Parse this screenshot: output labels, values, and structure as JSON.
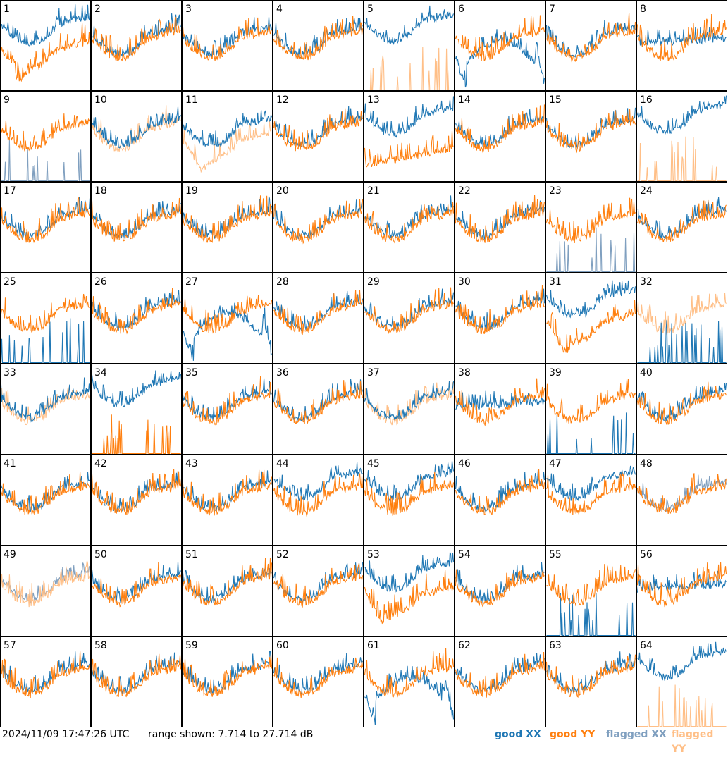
{
  "footer": {
    "timestamp": "2024/11/09 17:47:26 UTC",
    "range_text": "range shown: 7.714 to 27.714 dB"
  },
  "legend": {
    "good_xx": "good XX",
    "good_yy": "good YY",
    "flagged_xx": "flagged XX",
    "flagged_yy": "flagged YY"
  },
  "colors": {
    "good_xx": "#1f77b4",
    "good_yy": "#ff7f0e",
    "flagged_xx": "#7f9fbf",
    "flagged_yy": "#ffbf87",
    "border": "#000000",
    "label": "#000000"
  },
  "chart_data": {
    "type": "line",
    "ylim": [
      7.714,
      27.714
    ],
    "grid": false,
    "legend_placement": "bottom-right",
    "panels": [
      {
        "label": "1",
        "xx": "good",
        "yy": "good",
        "xx_shape": "xx_above",
        "yy_shape": "dip"
      },
      {
        "label": "2",
        "xx": "good",
        "yy": "good",
        "xx_shape": "track",
        "yy_shape": "std"
      },
      {
        "label": "3",
        "xx": "good",
        "yy": "good",
        "xx_shape": "track",
        "yy_shape": "std"
      },
      {
        "label": "4",
        "xx": "good",
        "yy": "good",
        "xx_shape": "track",
        "yy_shape": "std"
      },
      {
        "label": "5",
        "xx": "good",
        "yy": "flagged",
        "xx_shape": "xx_high",
        "yy_shape": "spikes"
      },
      {
        "label": "6",
        "xx": "good",
        "yy": "good",
        "xx_shape": "xx_drop",
        "yy_shape": "std"
      },
      {
        "label": "7",
        "xx": "good",
        "yy": "good",
        "xx_shape": "track",
        "yy_shape": "std"
      },
      {
        "label": "8",
        "xx": "good",
        "yy": "good",
        "xx_shape": "xx_flat",
        "yy_shape": "std"
      },
      {
        "label": "9",
        "xx": "flagged",
        "yy": "good",
        "xx_shape": "spikes",
        "yy_shape": "std"
      },
      {
        "label": "10",
        "xx": "good",
        "yy": "flagged",
        "xx_shape": "track",
        "yy_shape": "std"
      },
      {
        "label": "11",
        "xx": "good",
        "yy": "flagged",
        "xx_shape": "track",
        "yy_shape": "dip"
      },
      {
        "label": "12",
        "xx": "good",
        "yy": "good",
        "xx_shape": "track",
        "yy_shape": "std"
      },
      {
        "label": "13",
        "xx": "good",
        "yy": "good",
        "xx_shape": "xx_above",
        "yy_shape": "low"
      },
      {
        "label": "14",
        "xx": "good",
        "yy": "good",
        "xx_shape": "track",
        "yy_shape": "std"
      },
      {
        "label": "15",
        "xx": "good",
        "yy": "good",
        "xx_shape": "track",
        "yy_shape": "std"
      },
      {
        "label": "16",
        "xx": "good",
        "yy": "flagged",
        "xx_shape": "xx_high",
        "yy_shape": "spikes"
      },
      {
        "label": "17",
        "xx": "good",
        "yy": "good",
        "xx_shape": "track",
        "yy_shape": "std"
      },
      {
        "label": "18",
        "xx": "good",
        "yy": "good",
        "xx_shape": "track",
        "yy_shape": "std"
      },
      {
        "label": "19",
        "xx": "good",
        "yy": "good",
        "xx_shape": "track",
        "yy_shape": "std"
      },
      {
        "label": "20",
        "xx": "good",
        "yy": "good",
        "xx_shape": "track",
        "yy_shape": "std"
      },
      {
        "label": "21",
        "xx": "good",
        "yy": "good",
        "xx_shape": "track",
        "yy_shape": "std"
      },
      {
        "label": "22",
        "xx": "good",
        "yy": "good",
        "xx_shape": "track",
        "yy_shape": "std"
      },
      {
        "label": "23",
        "xx": "flagged",
        "yy": "good",
        "xx_shape": "spikes",
        "yy_shape": "std"
      },
      {
        "label": "24",
        "xx": "good",
        "yy": "good",
        "xx_shape": "track",
        "yy_shape": "std"
      },
      {
        "label": "25",
        "xx": "good",
        "yy": "good",
        "xx_shape": "spikes",
        "yy_shape": "std"
      },
      {
        "label": "26",
        "xx": "good",
        "yy": "good",
        "xx_shape": "track",
        "yy_shape": "std"
      },
      {
        "label": "27",
        "xx": "good",
        "yy": "good",
        "xx_shape": "xx_drop",
        "yy_shape": "std"
      },
      {
        "label": "28",
        "xx": "good",
        "yy": "good",
        "xx_shape": "track",
        "yy_shape": "std"
      },
      {
        "label": "29",
        "xx": "good",
        "yy": "good",
        "xx_shape": "track",
        "yy_shape": "std"
      },
      {
        "label": "30",
        "xx": "good",
        "yy": "good",
        "xx_shape": "track",
        "yy_shape": "std"
      },
      {
        "label": "31",
        "xx": "good",
        "yy": "good",
        "xx_shape": "xx_above",
        "yy_shape": "dip"
      },
      {
        "label": "32",
        "xx": "good",
        "yy": "flagged",
        "xx_shape": "spikes",
        "yy_shape": "std"
      },
      {
        "label": "33",
        "xx": "good",
        "yy": "flagged",
        "xx_shape": "track",
        "yy_shape": "std"
      },
      {
        "label": "34",
        "xx": "good",
        "yy": "good",
        "xx_shape": "xx_high",
        "yy_shape": "spikes"
      },
      {
        "label": "35",
        "xx": "good",
        "yy": "good",
        "xx_shape": "track",
        "yy_shape": "std"
      },
      {
        "label": "36",
        "xx": "good",
        "yy": "good",
        "xx_shape": "track",
        "yy_shape": "std"
      },
      {
        "label": "37",
        "xx": "good",
        "yy": "flagged",
        "xx_shape": "track",
        "yy_shape": "std"
      },
      {
        "label": "38",
        "xx": "good",
        "yy": "good",
        "xx_shape": "xx_flat",
        "yy_shape": "std"
      },
      {
        "label": "39",
        "xx": "good",
        "yy": "good",
        "xx_shape": "spikes",
        "yy_shape": "std"
      },
      {
        "label": "40",
        "xx": "good",
        "yy": "good",
        "xx_shape": "track",
        "yy_shape": "std"
      },
      {
        "label": "41",
        "xx": "good",
        "yy": "good",
        "xx_shape": "track",
        "yy_shape": "std"
      },
      {
        "label": "42",
        "xx": "good",
        "yy": "good",
        "xx_shape": "track",
        "yy_shape": "std"
      },
      {
        "label": "43",
        "xx": "good",
        "yy": "good",
        "xx_shape": "track",
        "yy_shape": "std"
      },
      {
        "label": "44",
        "xx": "good",
        "yy": "good",
        "xx_shape": "xx_above",
        "yy_shape": "std"
      },
      {
        "label": "45",
        "xx": "good",
        "yy": "good",
        "xx_shape": "xx_above",
        "yy_shape": "std"
      },
      {
        "label": "46",
        "xx": "good",
        "yy": "good",
        "xx_shape": "track",
        "yy_shape": "std"
      },
      {
        "label": "47",
        "xx": "good",
        "yy": "good",
        "xx_shape": "xx_above",
        "yy_shape": "std"
      },
      {
        "label": "48",
        "xx": "flagged",
        "yy": "good",
        "xx_shape": "track",
        "yy_shape": "std"
      },
      {
        "label": "49",
        "xx": "flagged",
        "yy": "flagged",
        "xx_shape": "track",
        "yy_shape": "std"
      },
      {
        "label": "50",
        "xx": "good",
        "yy": "good",
        "xx_shape": "track",
        "yy_shape": "std"
      },
      {
        "label": "51",
        "xx": "good",
        "yy": "good",
        "xx_shape": "track",
        "yy_shape": "std"
      },
      {
        "label": "52",
        "xx": "good",
        "yy": "good",
        "xx_shape": "track",
        "yy_shape": "std"
      },
      {
        "label": "53",
        "xx": "good",
        "yy": "good",
        "xx_shape": "xx_above",
        "yy_shape": "dip"
      },
      {
        "label": "54",
        "xx": "good",
        "yy": "good",
        "xx_shape": "track",
        "yy_shape": "std"
      },
      {
        "label": "55",
        "xx": "good",
        "yy": "good",
        "xx_shape": "spikes",
        "yy_shape": "std"
      },
      {
        "label": "56",
        "xx": "good",
        "yy": "good",
        "xx_shape": "xx_flat",
        "yy_shape": "std"
      },
      {
        "label": "57",
        "xx": "good",
        "yy": "good",
        "xx_shape": "track",
        "yy_shape": "std"
      },
      {
        "label": "58",
        "xx": "good",
        "yy": "good",
        "xx_shape": "track",
        "yy_shape": "std"
      },
      {
        "label": "59",
        "xx": "good",
        "yy": "good",
        "xx_shape": "track",
        "yy_shape": "std"
      },
      {
        "label": "60",
        "xx": "good",
        "yy": "good",
        "xx_shape": "track",
        "yy_shape": "std"
      },
      {
        "label": "61",
        "xx": "good",
        "yy": "good",
        "xx_shape": "xx_drop",
        "yy_shape": "std"
      },
      {
        "label": "62",
        "xx": "good",
        "yy": "good",
        "xx_shape": "track",
        "yy_shape": "std"
      },
      {
        "label": "63",
        "xx": "good",
        "yy": "good",
        "xx_shape": "track",
        "yy_shape": "std"
      },
      {
        "label": "64",
        "xx": "good",
        "yy": "flagged",
        "xx_shape": "xx_high",
        "yy_shape": "spikes"
      }
    ]
  }
}
